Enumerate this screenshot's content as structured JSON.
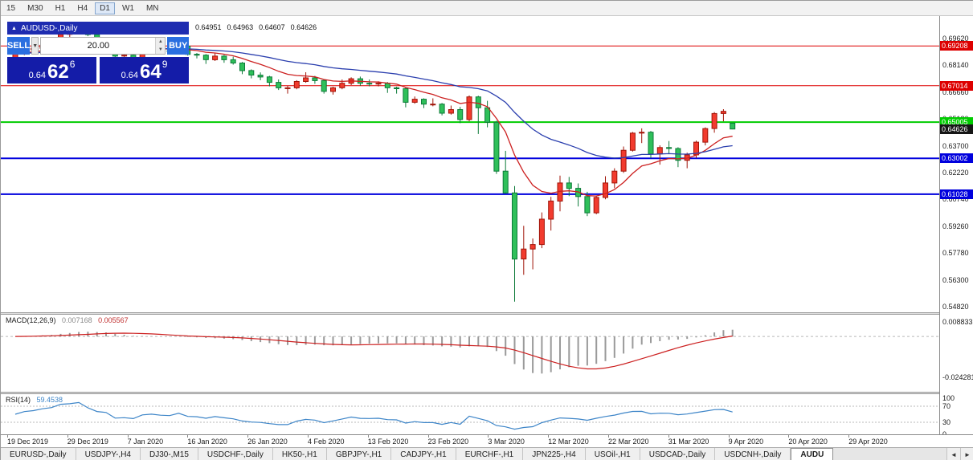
{
  "toolbar": {
    "items": [
      {
        "label": "15",
        "active": false
      },
      {
        "label": "M30",
        "active": false
      },
      {
        "label": "H1",
        "active": false
      },
      {
        "label": "H4",
        "active": false
      },
      {
        "label": "D1",
        "active": true
      },
      {
        "label": "W1",
        "active": false
      },
      {
        "label": "MN",
        "active": false
      }
    ]
  },
  "chart_header": {
    "collapse_icon": "▲",
    "symbol": "AUDUSD-,Daily",
    "open": "0.64951",
    "high": "0.64963",
    "low": "0.64607",
    "close": "0.64626"
  },
  "trade_panel": {
    "sell_label": "SELL",
    "buy_label": "BUY",
    "volume": "20.00",
    "dropdown_icon": "▼",
    "stepper_up": "▲",
    "stepper_down": "▼",
    "sell_price": {
      "prefix": "0.64",
      "big": "62",
      "pip": "6"
    },
    "buy_price": {
      "prefix": "0.64",
      "big": "64",
      "pip": "9"
    }
  },
  "chart_data": {
    "type": "candlestick",
    "title": "AUDUSD-,Daily",
    "bull_color": "#f23b2e",
    "bull_stroke": "#a01408",
    "bear_color": "#2fc05a",
    "bear_stroke": "#0c7a38",
    "current_price": "0.64626",
    "current_price_color": "#161616",
    "y_axis": {
      "min": 0.5451,
      "max": 0.7086,
      "ticks": [
        "0.69620",
        "0.68140",
        "0.66660",
        "0.65180",
        "0.63700",
        "0.62220",
        "0.60740",
        "0.59260",
        "0.57780",
        "0.56300",
        "0.54820"
      ]
    },
    "x_labels": [
      "19 Dec 2019",
      "29 Dec 2019",
      "7 Jan 2020",
      "16 Jan 2020",
      "26 Jan 2020",
      "4 Feb 2020",
      "13 Feb 2020",
      "23 Feb 2020",
      "3 Mar 2020",
      "12 Mar 2020",
      "22 Mar 2020",
      "31 Mar 2020",
      "9 Apr 2020",
      "20 Apr 2020",
      "29 Apr 2020"
    ],
    "levels": [
      {
        "value": "0.69208",
        "num": 0.69208,
        "color": "#dd0000",
        "width": 1
      },
      {
        "value": "0.67014",
        "num": 0.67014,
        "color": "#dd0000",
        "width": 1
      },
      {
        "value": "0.65005",
        "num": 0.65005,
        "color": "#00cc00",
        "width": 2
      },
      {
        "value": "0.63002",
        "num": 0.63002,
        "color": "#0000dd",
        "width": 2
      },
      {
        "value": "0.61028",
        "num": 0.61028,
        "color": "#0000dd",
        "width": 2
      }
    ],
    "moving_averages": [
      {
        "type": "ema",
        "period": 10,
        "color": "#cc2020"
      },
      {
        "type": "ema",
        "period": 30,
        "color": "#2b3fae"
      }
    ],
    "ohlc": [
      [
        0.6852,
        0.6886,
        0.6838,
        0.688
      ],
      [
        0.688,
        0.691,
        0.687,
        0.69
      ],
      [
        0.69,
        0.692,
        0.6888,
        0.6908
      ],
      [
        0.6908,
        0.6932,
        0.6898,
        0.6925
      ],
      [
        0.6925,
        0.6948,
        0.6915,
        0.6938
      ],
      [
        0.6938,
        0.699,
        0.693,
        0.6985
      ],
      [
        0.6985,
        0.7005,
        0.6968,
        0.6995
      ],
      [
        0.6995,
        0.7025,
        0.6985,
        0.7021
      ],
      [
        0.7021,
        0.7032,
        0.6975,
        0.6984
      ],
      [
        0.6984,
        0.7,
        0.693,
        0.695
      ],
      [
        0.695,
        0.6962,
        0.6922,
        0.694
      ],
      [
        0.694,
        0.6948,
        0.685,
        0.6865
      ],
      [
        0.6865,
        0.6882,
        0.6848,
        0.687
      ],
      [
        0.687,
        0.6878,
        0.6832,
        0.6855
      ],
      [
        0.6855,
        0.6912,
        0.685,
        0.69
      ],
      [
        0.69,
        0.6922,
        0.689,
        0.691
      ],
      [
        0.691,
        0.6918,
        0.6878,
        0.6895
      ],
      [
        0.6895,
        0.6908,
        0.6878,
        0.689
      ],
      [
        0.689,
        0.6928,
        0.6884,
        0.692
      ],
      [
        0.692,
        0.6932,
        0.6868,
        0.6875
      ],
      [
        0.6875,
        0.6882,
        0.6852,
        0.687
      ],
      [
        0.687,
        0.6876,
        0.6822,
        0.6845
      ],
      [
        0.6845,
        0.6882,
        0.6838,
        0.6865
      ],
      [
        0.6865,
        0.6872,
        0.6828,
        0.6845
      ],
      [
        0.6845,
        0.6862,
        0.6818,
        0.6827
      ],
      [
        0.6827,
        0.6832,
        0.6765,
        0.6785
      ],
      [
        0.6785,
        0.6792,
        0.6742,
        0.676
      ],
      [
        0.676,
        0.6775,
        0.6732,
        0.675
      ],
      [
        0.675,
        0.6756,
        0.6698,
        0.672
      ],
      [
        0.672,
        0.6736,
        0.6678,
        0.669
      ],
      [
        0.669,
        0.6702,
        0.6658,
        0.669
      ],
      [
        0.669,
        0.6732,
        0.6682,
        0.6725
      ],
      [
        0.6725,
        0.6776,
        0.6718,
        0.6745
      ],
      [
        0.6745,
        0.6756,
        0.6712,
        0.673
      ],
      [
        0.673,
        0.6736,
        0.6658,
        0.667
      ],
      [
        0.667,
        0.6696,
        0.6652,
        0.669
      ],
      [
        0.669,
        0.6736,
        0.6682,
        0.6715
      ],
      [
        0.6715,
        0.6748,
        0.6705,
        0.674
      ],
      [
        0.674,
        0.6752,
        0.6702,
        0.6715
      ],
      [
        0.6715,
        0.6736,
        0.6698,
        0.6712
      ],
      [
        0.6712,
        0.6726,
        0.6698,
        0.6715
      ],
      [
        0.6715,
        0.6722,
        0.6662,
        0.669
      ],
      [
        0.669,
        0.6696,
        0.6658,
        0.6685
      ],
      [
        0.6685,
        0.6692,
        0.6582,
        0.661
      ],
      [
        0.661,
        0.6642,
        0.6602,
        0.6627
      ],
      [
        0.6627,
        0.6632,
        0.6578,
        0.66
      ],
      [
        0.66,
        0.6632,
        0.6588,
        0.66
      ],
      [
        0.66,
        0.6606,
        0.6538,
        0.655
      ],
      [
        0.655,
        0.6592,
        0.6542,
        0.657
      ],
      [
        0.657,
        0.6585,
        0.6495,
        0.6515
      ],
      [
        0.6515,
        0.6648,
        0.6505,
        0.664
      ],
      [
        0.664,
        0.6646,
        0.6435,
        0.658
      ],
      [
        0.658,
        0.6618,
        0.6472,
        0.65
      ],
      [
        0.65,
        0.6508,
        0.6215,
        0.623
      ],
      [
        0.623,
        0.6342,
        0.6105,
        0.611
      ],
      [
        0.611,
        0.6148,
        0.551,
        0.5745
      ],
      [
        0.5745,
        0.5928,
        0.5658,
        0.58
      ],
      [
        0.58,
        0.5858,
        0.5688,
        0.5825
      ],
      [
        0.5825,
        0.6002,
        0.5805,
        0.5965
      ],
      [
        0.5965,
        0.6088,
        0.5902,
        0.6065
      ],
      [
        0.6065,
        0.6205,
        0.6008,
        0.6165
      ],
      [
        0.6165,
        0.6198,
        0.6092,
        0.6135
      ],
      [
        0.6135,
        0.6162,
        0.6035,
        0.609
      ],
      [
        0.609,
        0.6116,
        0.5982,
        0.6
      ],
      [
        0.6,
        0.6096,
        0.5992,
        0.6085
      ],
      [
        0.6085,
        0.6202,
        0.6075,
        0.6165
      ],
      [
        0.6165,
        0.6246,
        0.6136,
        0.623
      ],
      [
        0.623,
        0.6366,
        0.622,
        0.6345
      ],
      [
        0.6345,
        0.6446,
        0.6338,
        0.644
      ],
      [
        0.644,
        0.6466,
        0.6385,
        0.6445
      ],
      [
        0.6445,
        0.6452,
        0.6302,
        0.6325
      ],
      [
        0.6325,
        0.6372,
        0.6266,
        0.636
      ],
      [
        0.636,
        0.6396,
        0.6328,
        0.6355
      ],
      [
        0.6355,
        0.6362,
        0.6252,
        0.629
      ],
      [
        0.629,
        0.6332,
        0.6246,
        0.632
      ],
      [
        0.632,
        0.6398,
        0.6302,
        0.639
      ],
      [
        0.639,
        0.6472,
        0.6372,
        0.6465
      ],
      [
        0.6465,
        0.6556,
        0.6442,
        0.6548
      ],
      [
        0.6548,
        0.6572,
        0.6505,
        0.656
      ],
      [
        0.64951,
        0.64963,
        0.64607,
        0.64626
      ]
    ],
    "indicators": {
      "macd": {
        "label": "MACD(12,26,9)",
        "value_main": "0.007168",
        "value_signal": "0.005567",
        "fast": 12,
        "slow": 26,
        "signal": 9,
        "axis_labels": [
          "0.008833",
          "-0.024281"
        ],
        "range": [
          -0.033,
          0.013
        ],
        "histogram_color": "#9a9a9a",
        "signal_color": "#cc2020",
        "zero_line_color": "#b8b8b8"
      },
      "rsi": {
        "label": "RSI(14)",
        "value": "59.4538",
        "period": 14,
        "axis_labels": [
          "100",
          "70",
          "30",
          "0"
        ],
        "levels": [
          70,
          30
        ],
        "line_color": "#3d85c8",
        "level_line_color": "#b8b8b8"
      }
    }
  },
  "tabs": {
    "items": [
      {
        "label": "EURUSD-,Daily",
        "active": false
      },
      {
        "label": "USDJPY-,H4",
        "active": false
      },
      {
        "label": "DJ30-,M15",
        "active": false
      },
      {
        "label": "USDCHF-,Daily",
        "active": false
      },
      {
        "label": "HK50-,H1",
        "active": false
      },
      {
        "label": "GBPJPY-,H1",
        "active": false
      },
      {
        "label": "CADJPY-,H1",
        "active": false
      },
      {
        "label": "EURCHF-,H1",
        "active": false
      },
      {
        "label": "JPN225-,H4",
        "active": false
      },
      {
        "label": "USOil-,H1",
        "active": false
      },
      {
        "label": "USDCAD-,Daily",
        "active": false
      },
      {
        "label": "USDCNH-,Daily",
        "active": false
      },
      {
        "label": "AUDU",
        "active": true
      }
    ],
    "scroll_left": "◄",
    "scroll_right": "►"
  }
}
